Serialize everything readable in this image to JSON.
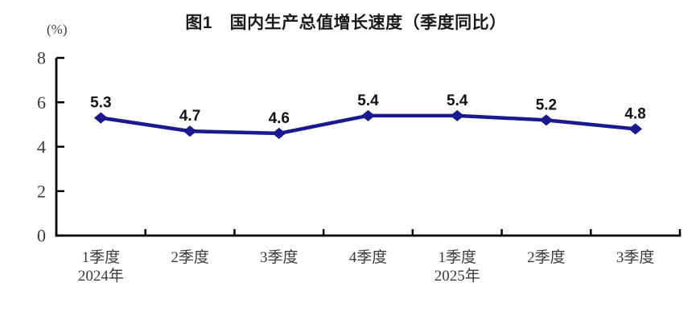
{
  "chart_data": {
    "type": "line",
    "title": "图1　国内生产总值增长速度（季度同比）",
    "unit_label": "(%)",
    "categories": [
      {
        "label": "1季度",
        "sublabel": "2024年"
      },
      {
        "label": "2季度",
        "sublabel": ""
      },
      {
        "label": "3季度",
        "sublabel": ""
      },
      {
        "label": "4季度",
        "sublabel": ""
      },
      {
        "label": "1季度",
        "sublabel": "2025年"
      },
      {
        "label": "2季度",
        "sublabel": ""
      },
      {
        "label": "3季度",
        "sublabel": ""
      }
    ],
    "values": [
      5.3,
      4.7,
      4.6,
      5.4,
      5.4,
      5.2,
      4.8
    ],
    "data_labels": [
      "5.3",
      "4.7",
      "4.6",
      "5.4",
      "5.4",
      "5.2",
      "4.8"
    ],
    "xlabel": "",
    "ylabel": "(%)",
    "ylim": [
      0,
      8
    ],
    "y_ticks": [
      0,
      2,
      4,
      6,
      8
    ],
    "grid": false,
    "legend": "none",
    "marker_shape": "diamond",
    "colors": {
      "line": "#1a1a8e",
      "marker": "#1a1a8e",
      "axis": "#000000",
      "tick_label": "#3b3b3b",
      "data_label": "#111111",
      "title": "#1a1a1a",
      "background": "#ffffff"
    }
  }
}
